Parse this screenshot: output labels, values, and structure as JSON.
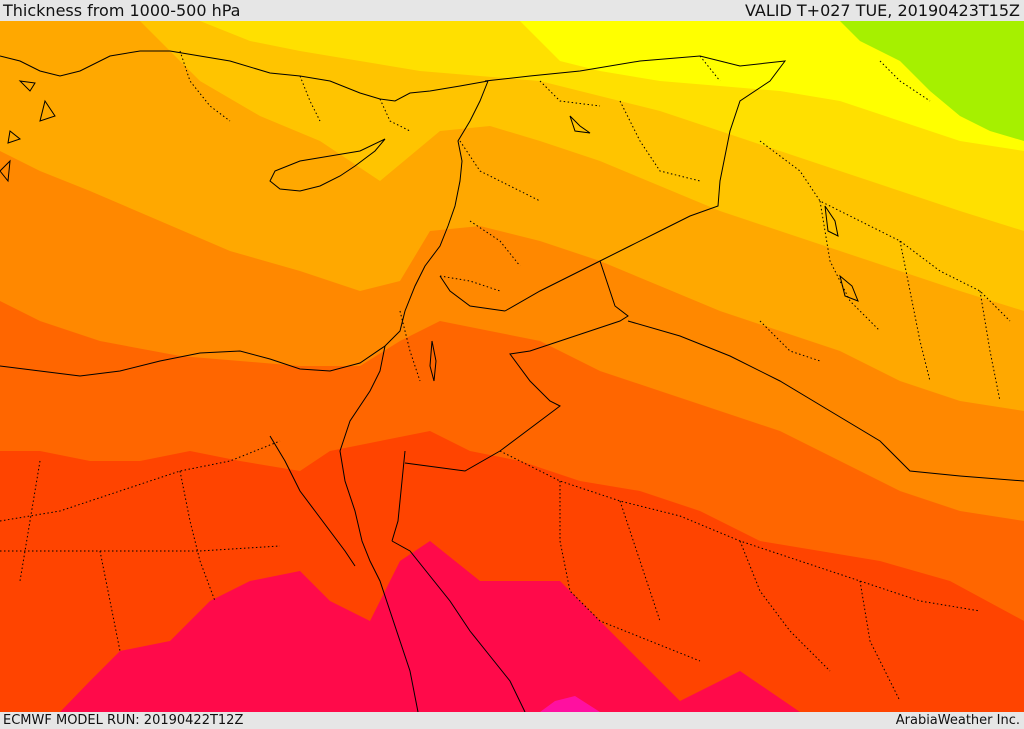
{
  "header": {
    "title": "Thickness from 1000-500 hPa",
    "valid": "VALID T+027 TUE, 20190423T15Z"
  },
  "footer": {
    "model_run": "ECMWF MODEL RUN: 20190422T12Z",
    "credit": "ArabiaWeather Inc."
  },
  "map": {
    "region": "Eastern Mediterranean and Middle East",
    "field": "1000-500 hPa thickness",
    "band_colors": [
      "#a6f000",
      "#ffff00",
      "#ffe000",
      "#ffc400",
      "#ffa800",
      "#ff8800",
      "#ff6600",
      "#ff4400",
      "#ff0a4a",
      "#ff10a0"
    ],
    "border_color": "#000000"
  }
}
